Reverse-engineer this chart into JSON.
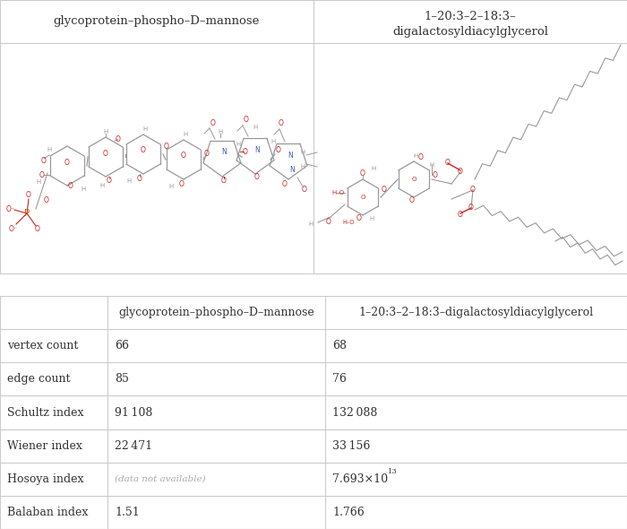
{
  "col1_header": "glycoprotein–phospho–D–mannose",
  "col2_header": "1–20:3–2–18:3–digalactosyldiacylglycerol",
  "row_labels": [
    "vertex count",
    "edge count",
    "Schultz index",
    "Wiener index",
    "Hosoya index",
    "Balaban index"
  ],
  "col1_values": [
    "66",
    "85",
    "91 108",
    "22 471",
    "(data not available)",
    "1.51"
  ],
  "col2_values": [
    "68",
    "76",
    "132 088",
    "33 156",
    "7.693×10^13",
    "1.766"
  ],
  "border_color": "#cccccc",
  "text_color": "#333333",
  "na_color": "#aaaaaa",
  "mol1_title": "glycoprotein–phospho–D–mannose",
  "mol2_title": "1–20:3–2–18:3–\ndigalactosyldiacylglycerol",
  "gray": "#999999",
  "red": "#cc2222",
  "blue": "#4455bb",
  "orange": "#cc6600"
}
